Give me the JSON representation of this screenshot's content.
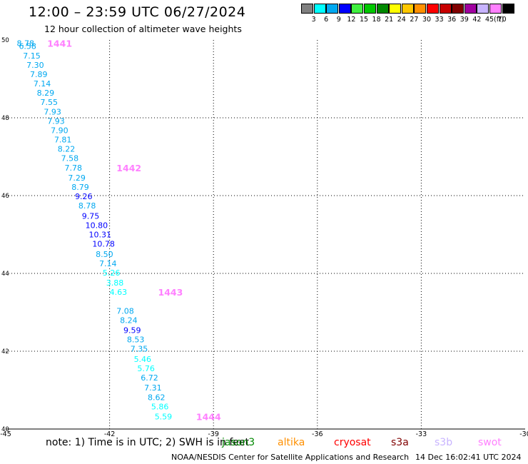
{
  "header": {
    "title": "12:00 – 23:59 UTC 06/27/2024",
    "subtitle": "12 hour collection of altimeter wave heights"
  },
  "color_scale": {
    "unit": "(ft)",
    "bins": [
      {
        "label": "3",
        "color": "#808080"
      },
      {
        "label": "6",
        "color": "#00ffff"
      },
      {
        "label": "9",
        "color": "#00a8f0"
      },
      {
        "label": "12",
        "color": "#0000ff"
      },
      {
        "label": "15",
        "color": "#40f040"
      },
      {
        "label": "18",
        "color": "#00c800"
      },
      {
        "label": "21",
        "color": "#008800"
      },
      {
        "label": "24",
        "color": "#ffff00"
      },
      {
        "label": "27",
        "color": "#ffc800"
      },
      {
        "label": "30",
        "color": "#ff9000"
      },
      {
        "label": "33",
        "color": "#ff0000"
      },
      {
        "label": "36",
        "color": "#c80000"
      },
      {
        "label": "39",
        "color": "#800000"
      },
      {
        "label": "42",
        "color": "#a000a0"
      },
      {
        "label": "45",
        "color": "#c8b4ff"
      },
      {
        "label": "70",
        "color": "#ff80ff"
      },
      {
        "label": "",
        "color": "#000000"
      }
    ]
  },
  "chart_data": {
    "type": "scatter",
    "xlim": [
      -45,
      -30
    ],
    "ylim": [
      40,
      50
    ],
    "x_ticks": [
      "-45",
      "-42",
      "-39",
      "-36",
      "-33",
      "-30"
    ],
    "y_ticks": [
      "50",
      "48",
      "46",
      "44",
      "42",
      "40"
    ],
    "grid": true,
    "points": [
      {
        "lon": -44.68,
        "lat": 49.92,
        "label": "8.78",
        "color": "#00a8f0"
      },
      {
        "lon": -44.62,
        "lat": 49.84,
        "label": "6.58",
        "color": "#00a8f0"
      },
      {
        "lon": -44.5,
        "lat": 49.6,
        "label": "7.15",
        "color": "#00a8f0"
      },
      {
        "lon": -44.4,
        "lat": 49.36,
        "label": "7.30",
        "color": "#00a8f0"
      },
      {
        "lon": -44.3,
        "lat": 49.12,
        "label": "7.89",
        "color": "#00a8f0"
      },
      {
        "lon": -44.2,
        "lat": 48.88,
        "label": "7.14",
        "color": "#00a8f0"
      },
      {
        "lon": -44.1,
        "lat": 48.64,
        "label": "8.29",
        "color": "#00a8f0"
      },
      {
        "lon": -44.0,
        "lat": 48.4,
        "label": "7.55",
        "color": "#00a8f0"
      },
      {
        "lon": -43.9,
        "lat": 48.16,
        "label": "7.93",
        "color": "#00a8f0"
      },
      {
        "lon": -43.8,
        "lat": 47.92,
        "label": "7.93",
        "color": "#00a8f0"
      },
      {
        "lon": -43.7,
        "lat": 47.68,
        "label": "7.90",
        "color": "#00a8f0"
      },
      {
        "lon": -43.6,
        "lat": 47.44,
        "label": "7.81",
        "color": "#00a8f0"
      },
      {
        "lon": -43.5,
        "lat": 47.2,
        "label": "8.22",
        "color": "#00a8f0"
      },
      {
        "lon": -43.4,
        "lat": 46.96,
        "label": "7.58",
        "color": "#00a8f0"
      },
      {
        "lon": -43.3,
        "lat": 46.72,
        "label": "7.78",
        "color": "#00a8f0"
      },
      {
        "lon": -43.2,
        "lat": 46.46,
        "label": "7.29",
        "color": "#00a8f0"
      },
      {
        "lon": -43.1,
        "lat": 46.22,
        "label": "8.79",
        "color": "#00a8f0"
      },
      {
        "lon": -43.0,
        "lat": 45.98,
        "label": "9.26",
        "color": "#0000ff"
      },
      {
        "lon": -42.9,
        "lat": 45.74,
        "label": "8.78",
        "color": "#00a8f0"
      },
      {
        "lon": -42.8,
        "lat": 45.48,
        "label": "9.75",
        "color": "#0000ff"
      },
      {
        "lon": -42.7,
        "lat": 45.24,
        "label": "10.80",
        "color": "#0000ff"
      },
      {
        "lon": -42.6,
        "lat": 45.0,
        "label": "10.31",
        "color": "#0000ff"
      },
      {
        "lon": -42.5,
        "lat": 44.76,
        "label": "10.78",
        "color": "#0000ff"
      },
      {
        "lon": -42.4,
        "lat": 44.5,
        "label": "8.50",
        "color": "#00a8f0"
      },
      {
        "lon": -42.3,
        "lat": 44.26,
        "label": "7.14",
        "color": "#00a8f0"
      },
      {
        "lon": -42.2,
        "lat": 44.02,
        "label": "5.26",
        "color": "#00ffff"
      },
      {
        "lon": -42.1,
        "lat": 43.76,
        "label": "3.88",
        "color": "#00ffff"
      },
      {
        "lon": -42.0,
        "lat": 43.52,
        "label": "4.63",
        "color": "#00ffff"
      },
      {
        "lon": -41.8,
        "lat": 43.04,
        "label": "7.08",
        "color": "#00a8f0"
      },
      {
        "lon": -41.7,
        "lat": 42.8,
        "label": "8.24",
        "color": "#00a8f0"
      },
      {
        "lon": -41.6,
        "lat": 42.54,
        "label": "9.59",
        "color": "#0000ff"
      },
      {
        "lon": -41.5,
        "lat": 42.3,
        "label": "8.53",
        "color": "#00a8f0"
      },
      {
        "lon": -41.4,
        "lat": 42.06,
        "label": "7.35",
        "color": "#00a8f0"
      },
      {
        "lon": -41.3,
        "lat": 41.8,
        "label": "5.46",
        "color": "#00ffff"
      },
      {
        "lon": -41.2,
        "lat": 41.56,
        "label": "5.76",
        "color": "#00ffff"
      },
      {
        "lon": -41.1,
        "lat": 41.32,
        "label": "6.72",
        "color": "#00a8f0"
      },
      {
        "lon": -41.0,
        "lat": 41.06,
        "label": "7.31",
        "color": "#00a8f0"
      },
      {
        "lon": -40.9,
        "lat": 40.82,
        "label": "8.62",
        "color": "#00a8f0"
      },
      {
        "lon": -40.8,
        "lat": 40.58,
        "label": "5.86",
        "color": "#00ffff"
      },
      {
        "lon": -40.7,
        "lat": 40.32,
        "label": "5.59",
        "color": "#00ffff"
      }
    ],
    "time_labels": [
      {
        "lon": -43.8,
        "lat": 49.92,
        "label": "1441",
        "color": "#ff80ff"
      },
      {
        "lon": -41.8,
        "lat": 46.72,
        "label": "1442",
        "color": "#ff80ff"
      },
      {
        "lon": -40.6,
        "lat": 43.52,
        "label": "1443",
        "color": "#ff80ff"
      },
      {
        "lon": -39.5,
        "lat": 40.32,
        "label": "1444",
        "color": "#ff80ff"
      }
    ]
  },
  "notes": {
    "text": "note: 1) Time is in UTC; 2) SWH is in feet",
    "satellites": [
      {
        "name": "jason3",
        "color": "#008800"
      },
      {
        "name": "altika",
        "color": "#ff9000"
      },
      {
        "name": "cryosat",
        "color": "#ff0000"
      },
      {
        "name": "s3a",
        "color": "#800000"
      },
      {
        "name": "s3b",
        "color": "#c8b4ff"
      },
      {
        "name": "swot",
        "color": "#ff80ff"
      }
    ]
  },
  "footer": {
    "credit": "NOAA/NESDIS Center for Satellite Applications and Research",
    "timestamp": "14 Dec 16:02:41 UTC 2024"
  }
}
